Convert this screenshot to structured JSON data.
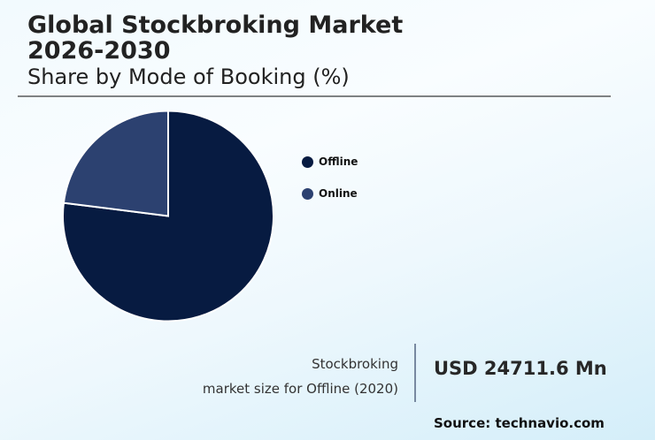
{
  "header": {
    "title_line1": "Global Stockbroking Market",
    "title_line2": "2026-2030",
    "subtitle": "Share by Mode of Booking (%)"
  },
  "legend": [
    {
      "label": "Offline",
      "color": "#071b41"
    },
    {
      "label": "Online",
      "color": "#2c4170"
    }
  ],
  "stat": {
    "desc_line1": "Stockbroking",
    "desc_line2": "market size for Offline (2020)",
    "value": "USD 24711.6 Mn"
  },
  "source": "Source: technavio.com",
  "chart_data": {
    "type": "pie",
    "title": "Global Stockbroking Market 2026-2030",
    "subtitle": "Share by Mode of Booking (%)",
    "categories": [
      "Offline",
      "Online"
    ],
    "values": [
      77,
      23
    ],
    "colors": [
      "#071b41",
      "#2c4170"
    ],
    "start_angle_deg": 0,
    "direction": "counterclockwise-from-top for Online",
    "legend_position": "right",
    "data_labels": false,
    "annotation": "Stockbroking market size for Offline (2020): USD 24711.6 Mn"
  }
}
